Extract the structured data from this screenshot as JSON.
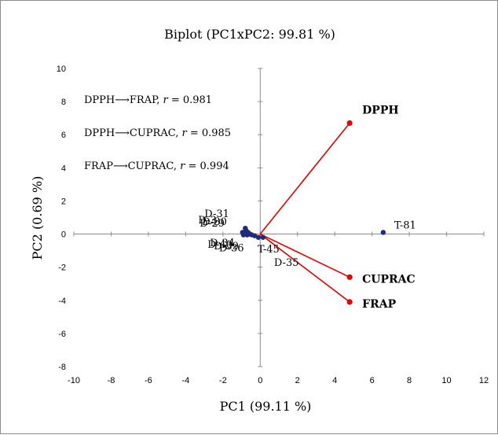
{
  "chart_data": {
    "type": "scatter",
    "title": "Biplot (PC1xPC2: 99.81 %)",
    "xlabel": "PC1 (99.11 %)",
    "ylabel": "PC2 (0.69 %)",
    "xlim": [
      -10,
      12
    ],
    "ylim": [
      -8,
      10
    ],
    "xticks": [
      "-10",
      "-8",
      "-6",
      "-4",
      "-2",
      "0",
      "2",
      "4",
      "6",
      "8",
      "10",
      "12"
    ],
    "yticks": [
      "-8",
      "-6",
      "-4",
      "-2",
      "0",
      "2",
      "4",
      "6",
      "8",
      "10"
    ],
    "grid": false,
    "annotations": [
      {
        "text": "DPPH⟶FRAP, ",
        "r_label": "r",
        "value": " = 0.981"
      },
      {
        "text": "DPPH⟶CUPRAC, ",
        "r_label": "r",
        "value": " = 0.985"
      },
      {
        "text": "FRAP⟶CUPRAC, ",
        "r_label": "r",
        "value": " = 0.994"
      }
    ],
    "variables": [
      {
        "name": "DPPH",
        "x": 4.8,
        "y": 6.7
      },
      {
        "name": "CUPRAC",
        "x": 4.8,
        "y": -2.6
      },
      {
        "name": "FRAP",
        "x": 4.8,
        "y": -4.1
      }
    ],
    "observations": [
      {
        "label": "T-81",
        "x": 6.6,
        "y": 0.1
      },
      {
        "label": "T-45",
        "x": 0.15,
        "y": -0.2
      },
      {
        "label": "D-35",
        "x": -0.1,
        "y": -0.2
      },
      {
        "label": "D-36",
        "x": -0.9,
        "y": -0.05
      },
      {
        "label": "D-31",
        "x": -0.8,
        "y": 0.35
      },
      {
        "label": "",
        "x": -0.75,
        "y": 0.2
      },
      {
        "label": "",
        "x": -0.65,
        "y": 0.1
      },
      {
        "label": "",
        "x": -0.55,
        "y": 0.0
      },
      {
        "label": "",
        "x": -0.45,
        "y": -0.05
      },
      {
        "label": "",
        "x": -0.3,
        "y": -0.1
      },
      {
        "label": "",
        "x": -0.95,
        "y": 0.1
      },
      {
        "label": "",
        "x": -0.7,
        "y": -0.05
      }
    ],
    "overlapping_labels": [
      "D-3",
      "D-30",
      "D-29",
      "D-34",
      "D-40",
      "D-39"
    ],
    "colors": {
      "points": "#1f2a7a",
      "vectors": "#e60000",
      "axis": "#8c8c8c"
    }
  }
}
